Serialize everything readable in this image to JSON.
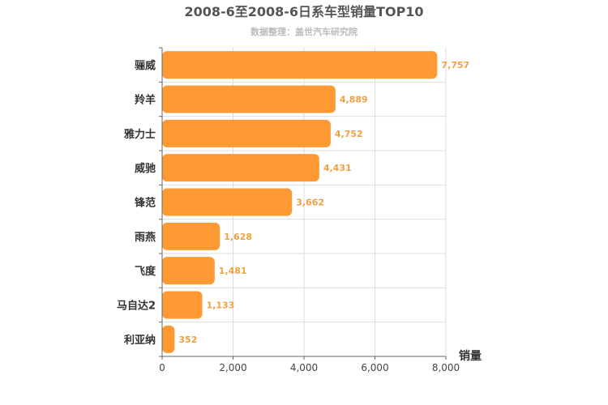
{
  "chart_data": {
    "type": "bar",
    "orientation": "horizontal",
    "title": "2008-6至2008-6日系车型销量TOP10",
    "subtitle": "数据整理：盖世汽车研究院",
    "xlabel": "销量",
    "ylabel": "",
    "categories": [
      "骊威",
      "羚羊",
      "雅力士",
      "威驰",
      "锋范",
      "雨燕",
      "飞度",
      "马自达2",
      "利亚纳"
    ],
    "values": [
      7757,
      4889,
      4752,
      4431,
      3662,
      1628,
      1481,
      1133,
      352
    ],
    "value_labels": [
      "7,757",
      "4,889",
      "4,752",
      "4,431",
      "3,662",
      "1,628",
      "1,481",
      "1,133",
      "352"
    ],
    "xlim": [
      0,
      8000
    ],
    "xticks": [
      0,
      2000,
      4000,
      6000,
      8000
    ],
    "xtick_labels": [
      "0",
      "2,000",
      "4,000",
      "6,000",
      "8,000"
    ],
    "grid": true,
    "colors": {
      "bar": "#ff9933",
      "value_label": "#f0a040",
      "title": "#555555",
      "subtitle": "#bbbbbb",
      "grid": "#dddddd",
      "axis": "#666666",
      "category_label": "#333333"
    }
  }
}
